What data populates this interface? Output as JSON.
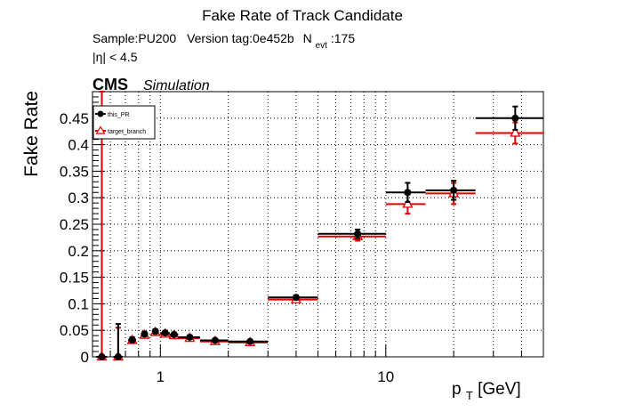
{
  "chart_data": {
    "type": "scatter",
    "title": "Fake Rate of Track Candidate",
    "info": {
      "sample": "Sample:PU200",
      "version": "Version tag:0e452b",
      "nevt_main": "N",
      "nevt_sub": "evt",
      "nevt_value": ":175",
      "eta_cut": "|η| < 4.5"
    },
    "cms_label": "CMS",
    "simulation_label": "Simulation",
    "ylabel": "Fake Rate",
    "xlabel_main": "p",
    "xlabel_sub": "T",
    "xlabel_unit": " [GeV]",
    "xscale": "log",
    "xlim": [
      0.5,
      50
    ],
    "ylim": [
      0,
      0.5
    ],
    "grid": true,
    "legend_position": "top-left",
    "x_tick_labels": [
      {
        "value": 1,
        "label": "1"
      },
      {
        "value": 10,
        "label": "10"
      }
    ],
    "y_tick_labels": [
      "0",
      "0.05",
      "0.1",
      "0.15",
      "0.2",
      "0.25",
      "0.3",
      "0.35",
      "0.4",
      "0.45"
    ],
    "series": [
      {
        "name": "this_PR",
        "color": "#000000",
        "marker": "filled-circle",
        "points": [
          {
            "x": 0.55,
            "y": 0.0,
            "xlo": 0.52,
            "xhi": 0.58,
            "eup": 0.0,
            "edn": 0.0
          },
          {
            "x": 0.65,
            "y": 0.0,
            "xlo": 0.62,
            "xhi": 0.68,
            "eup": 0.062,
            "edn": 0.0
          },
          {
            "x": 0.75,
            "y": 0.032,
            "xlo": 0.72,
            "xhi": 0.78,
            "eup": 0.005,
            "edn": 0.005
          },
          {
            "x": 0.85,
            "y": 0.043,
            "xlo": 0.82,
            "xhi": 0.88,
            "eup": 0.004,
            "edn": 0.004
          },
          {
            "x": 0.95,
            "y": 0.048,
            "xlo": 0.92,
            "xhi": 0.98,
            "eup": 0.004,
            "edn": 0.004
          },
          {
            "x": 1.05,
            "y": 0.045,
            "xlo": 1.0,
            "xhi": 1.1,
            "eup": 0.004,
            "edn": 0.004
          },
          {
            "x": 1.15,
            "y": 0.042,
            "xlo": 1.1,
            "xhi": 1.2,
            "eup": 0.004,
            "edn": 0.004
          },
          {
            "x": 1.35,
            "y": 0.037,
            "xlo": 1.2,
            "xhi": 1.5,
            "eup": 0.003,
            "edn": 0.003
          },
          {
            "x": 1.75,
            "y": 0.031,
            "xlo": 1.5,
            "xhi": 2.0,
            "eup": 0.003,
            "edn": 0.003
          },
          {
            "x": 2.5,
            "y": 0.029,
            "xlo": 2.0,
            "xhi": 3.0,
            "eup": 0.003,
            "edn": 0.003
          },
          {
            "x": 4.0,
            "y": 0.112,
            "xlo": 3.0,
            "xhi": 5.0,
            "eup": 0.004,
            "edn": 0.004
          },
          {
            "x": 7.5,
            "y": 0.232,
            "xlo": 5.0,
            "xhi": 10.0,
            "eup": 0.008,
            "edn": 0.008
          },
          {
            "x": 12.5,
            "y": 0.31,
            "xlo": 10.0,
            "xhi": 15.0,
            "eup": 0.018,
            "edn": 0.018
          },
          {
            "x": 20.0,
            "y": 0.314,
            "xlo": 15.0,
            "xhi": 25.0,
            "eup": 0.018,
            "edn": 0.018
          },
          {
            "x": 37.5,
            "y": 0.45,
            "xlo": 25.0,
            "xhi": 50.0,
            "eup": 0.022,
            "edn": 0.022
          }
        ]
      },
      {
        "name": "target_branch",
        "color": "#e00000",
        "marker": "open-triangle",
        "points": [
          {
            "x": 0.55,
            "y": 0.0,
            "xlo": 0.52,
            "xhi": 0.58,
            "eup": 0.5,
            "edn": 0.0
          },
          {
            "x": 0.65,
            "y": 0.0,
            "xlo": 0.62,
            "xhi": 0.68,
            "eup": 0.055,
            "edn": 0.0
          },
          {
            "x": 0.75,
            "y": 0.031,
            "xlo": 0.72,
            "xhi": 0.78,
            "eup": 0.005,
            "edn": 0.005
          },
          {
            "x": 0.85,
            "y": 0.041,
            "xlo": 0.82,
            "xhi": 0.88,
            "eup": 0.004,
            "edn": 0.004
          },
          {
            "x": 0.95,
            "y": 0.046,
            "xlo": 0.92,
            "xhi": 0.98,
            "eup": 0.004,
            "edn": 0.004
          },
          {
            "x": 1.05,
            "y": 0.043,
            "xlo": 1.0,
            "xhi": 1.1,
            "eup": 0.004,
            "edn": 0.004
          },
          {
            "x": 1.15,
            "y": 0.04,
            "xlo": 1.1,
            "xhi": 1.2,
            "eup": 0.004,
            "edn": 0.004
          },
          {
            "x": 1.35,
            "y": 0.035,
            "xlo": 1.2,
            "xhi": 1.5,
            "eup": 0.003,
            "edn": 0.003
          },
          {
            "x": 1.75,
            "y": 0.029,
            "xlo": 1.5,
            "xhi": 2.0,
            "eup": 0.003,
            "edn": 0.003
          },
          {
            "x": 2.5,
            "y": 0.027,
            "xlo": 2.0,
            "xhi": 3.0,
            "eup": 0.003,
            "edn": 0.003
          },
          {
            "x": 4.0,
            "y": 0.108,
            "xlo": 3.0,
            "xhi": 5.0,
            "eup": 0.004,
            "edn": 0.004
          },
          {
            "x": 7.5,
            "y": 0.227,
            "xlo": 5.0,
            "xhi": 10.0,
            "eup": 0.008,
            "edn": 0.008
          },
          {
            "x": 12.5,
            "y": 0.288,
            "xlo": 10.0,
            "xhi": 15.0,
            "eup": 0.018,
            "edn": 0.018
          },
          {
            "x": 20.0,
            "y": 0.308,
            "xlo": 15.0,
            "xhi": 25.0,
            "eup": 0.02,
            "edn": 0.02
          },
          {
            "x": 37.5,
            "y": 0.422,
            "xlo": 25.0,
            "xhi": 50.0,
            "eup": 0.02,
            "edn": 0.02
          }
        ]
      }
    ]
  }
}
